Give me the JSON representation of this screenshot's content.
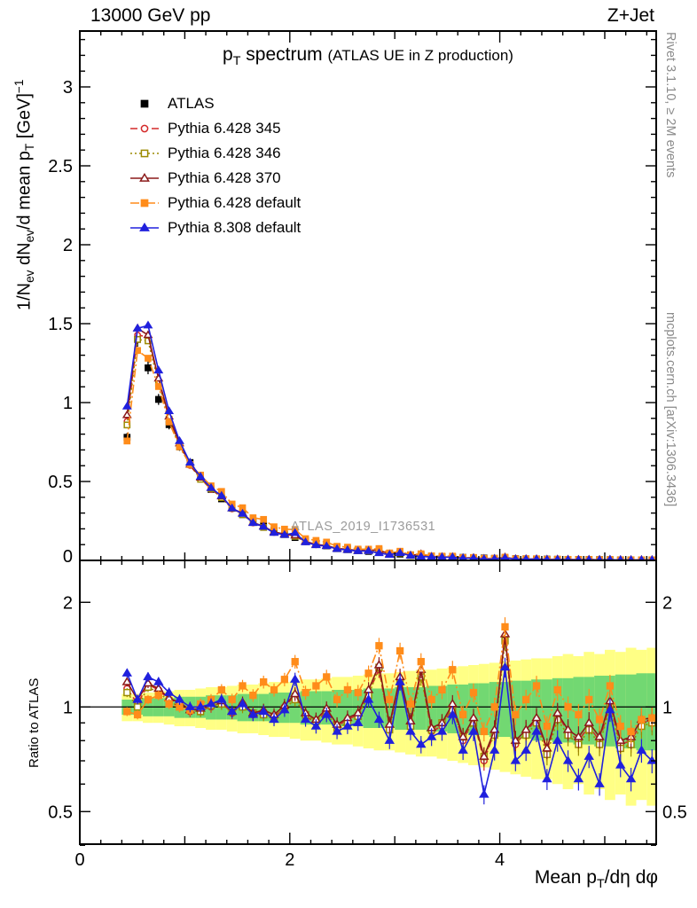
{
  "header": {
    "left": "13000 GeV pp",
    "right": "Z+Jet"
  },
  "side_notes": {
    "top": "Rivet 3.1.10, ≥ 2M events",
    "bottom": "mcplots.cern.ch [arXiv:1306.3436]"
  },
  "watermark": "ATLAS_2019_I1736531",
  "title": {
    "main_pre": "p",
    "main_sub": "T",
    "main_post": " spectrum",
    "paren": "(ATLAS UE in Z production)"
  },
  "ylabel": {
    "p1": "1/N",
    "s1": "ev",
    "p2": " dN",
    "s2": "ev",
    "p3": "/d mean p",
    "s3": "T",
    "p4": " [GeV]",
    "sup": "−1"
  },
  "ratio_ylabel": "Ratio to ATLAS",
  "xlabel": {
    "p1": "Mean p",
    "s1": "T",
    "p2": "/dη dφ"
  },
  "chart_data": {
    "type": "line",
    "title": "pT spectrum (ATLAS UE in Z production)",
    "xlabel": "Mean pT/dη dφ",
    "ylabel": "1/Nev dNev/d mean pT [GeV]^-1",
    "ratio_label": "Ratio to ATLAS",
    "ratio_ref": 1,
    "axes": {
      "x_range": [
        0,
        5.49
      ],
      "main_y_range": [
        0,
        3.354
      ],
      "ratio_y_range": [
        0.403,
        2.64
      ],
      "ratio_y_log": true,
      "x_ticks": [
        0,
        2,
        4
      ],
      "main_y_ticks": [
        0.5,
        1,
        1.5,
        2,
        2.5,
        3
      ],
      "main_y_zero": "0",
      "ratio_y_ticks": [
        0.5,
        1,
        2
      ],
      "ratio_y_minor": [
        0.4,
        0.6,
        0.7,
        0.8,
        0.9
      ]
    },
    "x": [
      0.45,
      0.55,
      0.65,
      0.75,
      0.85,
      0.95,
      1.05,
      1.15,
      1.25,
      1.35,
      1.45,
      1.55,
      1.65,
      1.75,
      1.85,
      1.95,
      2.05,
      2.15,
      2.25,
      2.35,
      2.45,
      2.55,
      2.65,
      2.75,
      2.85,
      2.95,
      3.05,
      3.15,
      3.25,
      3.35,
      3.45,
      3.55,
      3.65,
      3.75,
      3.85,
      3.95,
      4.05,
      4.15,
      4.25,
      4.35,
      4.45,
      4.55,
      4.65,
      4.75,
      4.85,
      4.95,
      5.05,
      5.15,
      5.25,
      5.35,
      5.45
    ],
    "bands": {
      "center": 1,
      "green_color": "#72d872",
      "yellow_color": "#ffff85",
      "green_half": [
        0.05,
        0.05,
        0.06,
        0.06,
        0.06,
        0.07,
        0.07,
        0.07,
        0.08,
        0.08,
        0.08,
        0.09,
        0.09,
        0.09,
        0.1,
        0.1,
        0.1,
        0.11,
        0.11,
        0.11,
        0.12,
        0.12,
        0.12,
        0.13,
        0.13,
        0.13,
        0.14,
        0.14,
        0.14,
        0.15,
        0.15,
        0.16,
        0.16,
        0.17,
        0.17,
        0.18,
        0.18,
        0.19,
        0.19,
        0.2,
        0.2,
        0.21,
        0.21,
        0.22,
        0.22,
        0.23,
        0.23,
        0.24,
        0.24,
        0.25,
        0.25
      ],
      "yellow_half": [
        0.09,
        0.09,
        0.1,
        0.1,
        0.11,
        0.12,
        0.12,
        0.13,
        0.14,
        0.14,
        0.15,
        0.16,
        0.16,
        0.17,
        0.18,
        0.18,
        0.19,
        0.2,
        0.2,
        0.21,
        0.22,
        0.22,
        0.23,
        0.24,
        0.25,
        0.25,
        0.26,
        0.27,
        0.28,
        0.28,
        0.29,
        0.3,
        0.31,
        0.32,
        0.33,
        0.34,
        0.35,
        0.36,
        0.37,
        0.38,
        0.38,
        0.4,
        0.42,
        0.4,
        0.44,
        0.42,
        0.46,
        0.44,
        0.48,
        0.46,
        0.48
      ]
    },
    "series": [
      {
        "id": "atlas",
        "label": "ATLAS",
        "color": "#000000",
        "marker": "square",
        "fill": true,
        "has_line": false,
        "dash": "",
        "values": [
          0.78,
          1.4,
          1.22,
          1.02,
          0.86,
          0.72,
          0.62,
          0.53,
          0.45,
          0.39,
          0.34,
          0.29,
          0.25,
          0.22,
          0.19,
          0.165,
          0.145,
          0.125,
          0.11,
          0.095,
          0.085,
          0.075,
          0.065,
          0.057,
          0.05,
          0.045,
          0.04,
          0.035,
          0.031,
          0.027,
          0.024,
          0.021,
          0.019,
          0.017,
          0.015,
          0.013,
          0.012,
          0.011,
          0.01,
          0.009,
          0.008,
          0.007,
          0.0065,
          0.006,
          0.0055,
          0.005,
          0.0045,
          0.004,
          0.0038,
          0.0035,
          0.0033
        ]
      },
      {
        "id": "pythia6_345",
        "label": "Pythia 6.428 345",
        "color": "#d42a2a",
        "marker": "circle",
        "fill": false,
        "has_line": true,
        "dash": "8,4",
        "ratio": [
          1.13,
          1.02,
          1.16,
          1.12,
          1.05,
          1.02,
          0.97,
          0.98,
          1.0,
          1.03,
          0.96,
          1.02,
          0.95,
          0.97,
          0.93,
          1.0,
          1.08,
          0.94,
          0.9,
          0.98,
          0.88,
          0.92,
          0.95,
          1.1,
          1.28,
          0.88,
          1.2,
          0.9,
          1.25,
          0.85,
          0.88,
          1.0,
          0.8,
          0.92,
          0.7,
          0.85,
          1.6,
          0.78,
          0.85,
          0.92,
          0.75,
          0.95,
          0.85,
          0.8,
          0.88,
          0.8,
          1.02,
          0.78,
          0.8,
          0.9,
          0.92
        ]
      },
      {
        "id": "pythia6_346",
        "label": "Pythia 6.428 346",
        "color": "#9c8a00",
        "marker": "square",
        "fill": false,
        "has_line": true,
        "dash": "2,3",
        "ratio": [
          1.1,
          1.0,
          1.14,
          1.1,
          1.04,
          1.0,
          0.98,
          0.97,
          1.01,
          1.02,
          0.97,
          1.0,
          0.96,
          0.95,
          0.94,
          0.99,
          1.05,
          0.95,
          0.91,
          0.96,
          0.87,
          0.9,
          0.94,
          1.08,
          1.3,
          0.86,
          1.18,
          0.88,
          1.22,
          0.86,
          0.9,
          0.98,
          0.82,
          0.9,
          0.72,
          0.83,
          1.55,
          0.8,
          0.83,
          0.9,
          0.73,
          0.92,
          0.83,
          0.78,
          0.86,
          0.78,
          1.0,
          0.76,
          0.78,
          0.88,
          0.9
        ]
      },
      {
        "id": "pythia6_370",
        "label": "Pythia 6.428 370",
        "color": "#8b1a1a",
        "marker": "triangle",
        "fill": false,
        "has_line": true,
        "dash": "",
        "ratio": [
          1.18,
          1.05,
          1.17,
          1.13,
          1.06,
          1.03,
          0.98,
          0.99,
          1.02,
          1.04,
          0.97,
          1.03,
          0.96,
          0.98,
          0.95,
          1.01,
          1.09,
          0.96,
          0.92,
          0.99,
          0.89,
          0.93,
          0.96,
          1.12,
          1.32,
          0.89,
          1.22,
          0.91,
          1.28,
          0.87,
          0.9,
          1.02,
          0.82,
          0.93,
          0.72,
          0.86,
          1.62,
          0.8,
          0.86,
          0.93,
          0.76,
          0.96,
          0.86,
          0.82,
          0.9,
          0.82,
          1.04,
          0.8,
          0.82,
          0.92,
          0.93
        ]
      },
      {
        "id": "pythia6_default",
        "label": "Pythia 6.428 default",
        "color": "#ff8c1a",
        "marker": "square",
        "fill": true,
        "has_line": true,
        "dash": "10,3,2,3",
        "ratio": [
          0.97,
          0.95,
          1.05,
          1.08,
          1.02,
          1.0,
          0.98,
          1.02,
          1.05,
          1.12,
          1.05,
          1.15,
          1.08,
          1.18,
          1.12,
          1.2,
          1.35,
          1.1,
          1.15,
          1.22,
          1.05,
          1.12,
          1.1,
          1.25,
          1.5,
          1.05,
          1.45,
          1.02,
          1.35,
          1.05,
          1.12,
          1.28,
          0.95,
          1.1,
          0.85,
          1.0,
          1.7,
          0.95,
          1.05,
          1.15,
          0.88,
          1.12,
          1.0,
          0.95,
          1.05,
          0.92,
          1.15,
          0.88,
          0.85,
          0.92,
          0.93
        ]
      },
      {
        "id": "pythia8_default",
        "label": "Pythia 8.308 default",
        "color": "#2020dd",
        "marker": "triangle",
        "fill": true,
        "has_line": true,
        "dash": "",
        "ratio": [
          1.25,
          1.05,
          1.22,
          1.18,
          1.1,
          1.05,
          1.0,
          1.0,
          1.02,
          1.05,
          0.97,
          1.02,
          0.95,
          0.97,
          0.92,
          0.98,
          1.2,
          0.92,
          0.88,
          0.95,
          0.85,
          0.88,
          0.9,
          1.05,
          0.92,
          0.8,
          1.18,
          0.85,
          0.78,
          0.82,
          0.85,
          0.95,
          0.75,
          0.85,
          0.56,
          0.75,
          1.3,
          0.7,
          0.75,
          0.85,
          0.62,
          0.8,
          0.7,
          0.62,
          0.72,
          0.6,
          0.98,
          0.68,
          0.62,
          0.75,
          0.7
        ]
      }
    ]
  }
}
